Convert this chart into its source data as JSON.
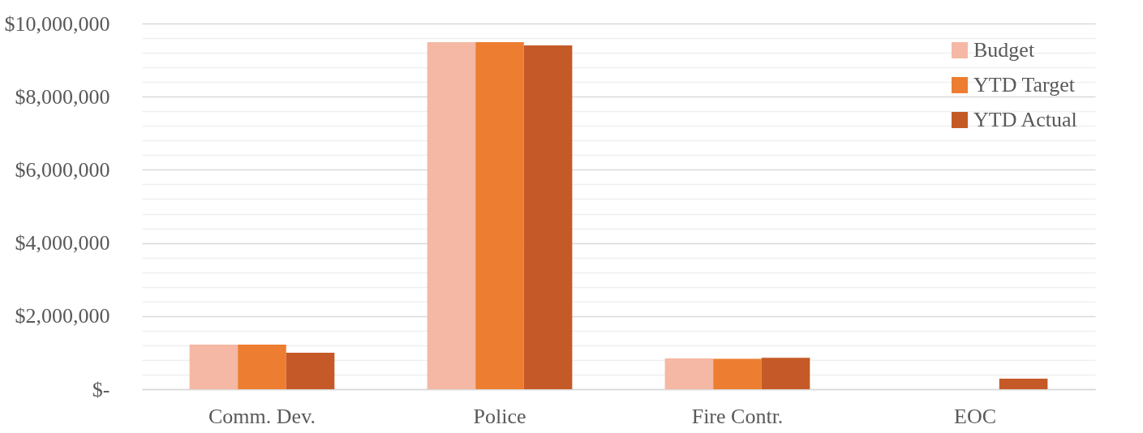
{
  "chart_data": {
    "type": "bar",
    "categories": [
      "Comm. Dev.",
      "Police",
      "Fire Contr.",
      "EOC"
    ],
    "series": [
      {
        "name": "Budget",
        "color": "#f4b8a4",
        "values": [
          1220000,
          9490000,
          840000,
          0
        ]
      },
      {
        "name": "YTD Target",
        "color": "#ed7d31",
        "values": [
          1220000,
          9490000,
          830000,
          0
        ]
      },
      {
        "name": "YTD Actual",
        "color": "#c55a28",
        "values": [
          1000000,
          9400000,
          860000,
          290000
        ]
      }
    ],
    "ylim": [
      0,
      10000000
    ],
    "yticks": [
      {
        "value": 0,
        "label": "$-"
      },
      {
        "value": 400000,
        "label": null
      },
      {
        "value": 800000,
        "label": null
      },
      {
        "value": 1200000,
        "label": null
      },
      {
        "value": 1600000,
        "label": null
      },
      {
        "value": 2000000,
        "label": "$2,000,000"
      },
      {
        "value": 2400000,
        "label": null
      },
      {
        "value": 2800000,
        "label": null
      },
      {
        "value": 3200000,
        "label": null
      },
      {
        "value": 3600000,
        "label": null
      },
      {
        "value": 4000000,
        "label": "$4,000,000"
      },
      {
        "value": 4400000,
        "label": null
      },
      {
        "value": 4800000,
        "label": null
      },
      {
        "value": 5200000,
        "label": null
      },
      {
        "value": 5600000,
        "label": null
      },
      {
        "value": 6000000,
        "label": "$6,000,000"
      },
      {
        "value": 6400000,
        "label": null
      },
      {
        "value": 6800000,
        "label": null
      },
      {
        "value": 7200000,
        "label": null
      },
      {
        "value": 7600000,
        "label": null
      },
      {
        "value": 8000000,
        "label": "$8,000,000"
      },
      {
        "value": 8400000,
        "label": null
      },
      {
        "value": 8800000,
        "label": null
      },
      {
        "value": 9200000,
        "label": null
      },
      {
        "value": 9600000,
        "label": null
      },
      {
        "value": 10000000,
        "label": "$10,000,000"
      }
    ],
    "grid": true,
    "legend": "top right"
  }
}
